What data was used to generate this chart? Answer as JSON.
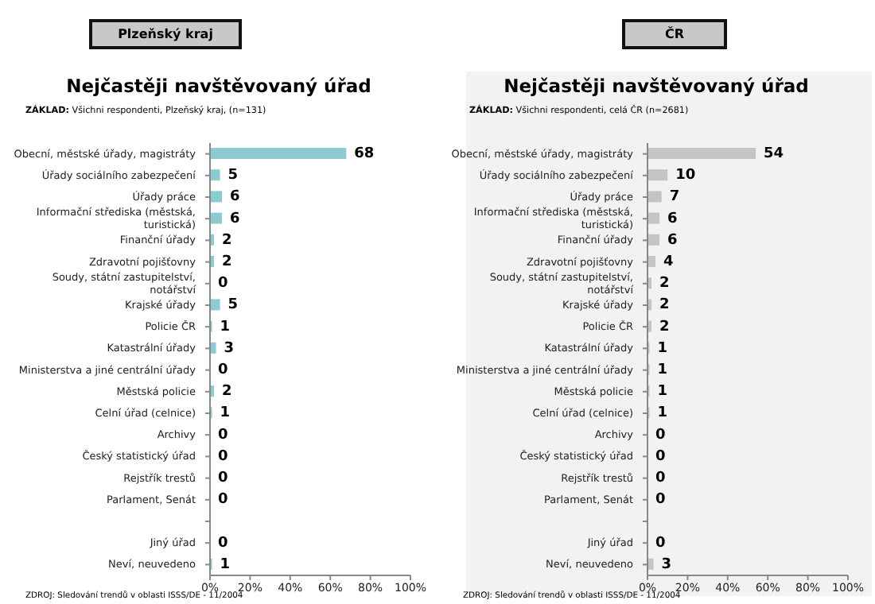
{
  "chart_data": [
    {
      "type": "bar",
      "orientation": "horizontal",
      "title": "Nejčastěji navštěvovaný úřad",
      "subtitle": "ZÁKLAD: Všichni respondenti, Plzeňský kraj, (n=131)",
      "annotations": [
        "Plzeňský kraj",
        "ZDROJ: Sledování trendů v oblasti ISSS/DE - 11/2004"
      ],
      "categories": [
        "Obecní, městské úřady, magistráty",
        "Úřady sociálního zabezpečení",
        "Úřady práce",
        "Informační střediska (městská, turistická)",
        "Finanční úřady",
        "Zdravotní pojišťovny",
        "Soudy, státní zastupitelství, notářství",
        "Krajské úřady",
        "Policie ČR",
        "Katastrální úřady",
        "Ministerstva a jiné centrální úřady",
        "Městská policie",
        "Celní úřad (celnice)",
        "Archivy",
        "Český statistický úřad",
        "Rejstřík trestů",
        "Parlament, Senát",
        null,
        "Jiný úřad",
        "Neví, neuvedeno"
      ],
      "values": [
        68,
        5,
        6,
        6,
        2,
        2,
        0,
        5,
        1,
        3,
        0,
        2,
        1,
        0,
        0,
        0,
        0,
        null,
        0,
        1
      ],
      "color": "#8ecbd0",
      "xlim": [
        0,
        100
      ],
      "xticks": [
        {
          "value": 0,
          "label": "0%"
        },
        {
          "value": 20,
          "label": "20%"
        },
        {
          "value": 40,
          "label": "40%"
        },
        {
          "value": 60,
          "label": "60%"
        },
        {
          "value": 80,
          "label": "80%"
        },
        {
          "value": 100,
          "label": "100%"
        }
      ],
      "data_labels": true,
      "grid": false,
      "legend": false
    },
    {
      "type": "bar",
      "orientation": "horizontal",
      "title": "Nejčastěji navštěvovaný úřad",
      "subtitle": "ZÁKLAD: Všichni respondenti, celá ČR (n=2681)",
      "annotations": [
        "ČR",
        "ZDROJ: Sledování trendů v oblasti ISSS/DE - 11/2004"
      ],
      "categories": [
        "Obecní, městské úřady, magistráty",
        "Úřady sociálního zabezpečení",
        "Úřady práce",
        "Informační střediska (městská, turistická)",
        "Finanční úřady",
        "Zdravotní pojišťovny",
        "Soudy, státní zastupitelství, notářství",
        "Krajské úřady",
        "Policie ČR",
        "Katastrální úřady",
        "Ministerstva a jiné centrální úřady",
        "Městská policie",
        "Celní úřad (celnice)",
        "Archivy",
        "Český statistický úřad",
        "Rejstřík trestů",
        "Parlament, Senát",
        null,
        "Jiný úřad",
        "Neví, neuvedeno"
      ],
      "values": [
        54,
        10,
        7,
        6,
        6,
        4,
        2,
        2,
        2,
        1,
        1,
        1,
        1,
        0,
        0,
        0,
        0,
        null,
        0,
        3
      ],
      "color": "#c4c4c4",
      "xlim": [
        0,
        100
      ],
      "xticks": [
        {
          "value": 0,
          "label": "0%"
        },
        {
          "value": 20,
          "label": "20%"
        },
        {
          "value": 40,
          "label": "40%"
        },
        {
          "value": 60,
          "label": "60%"
        },
        {
          "value": 80,
          "label": "80%"
        },
        {
          "value": 100,
          "label": "100%"
        }
      ],
      "data_labels": true,
      "grid": false,
      "legend": false
    }
  ]
}
